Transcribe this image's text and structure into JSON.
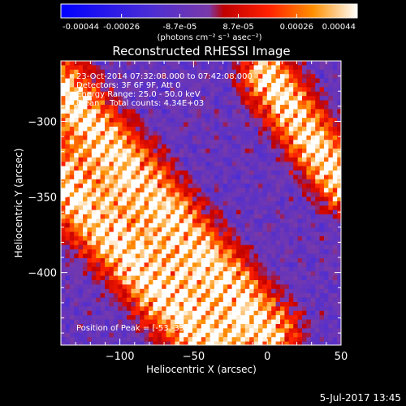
{
  "chart_data": {
    "type": "heatmap",
    "title": "Reconstructed RHESSI Image",
    "xlabel": "Heliocentric X (arcsec)",
    "ylabel": "Heliocentric Y (arcsec)",
    "xlim": [
      -140,
      50
    ],
    "ylim": [
      -448,
      -260
    ],
    "x_ticks": [
      -100,
      -50,
      0,
      50
    ],
    "y_ticks": [
      -300,
      -350,
      -400
    ],
    "colorbar": {
      "range": [
        -0.00044,
        0.00044
      ],
      "tick_values": [
        -0.00044,
        -0.00026,
        -8.7e-05,
        8.7e-05,
        0.00026,
        0.00044
      ],
      "tick_labels": [
        "-0.00044",
        "-0.00026",
        "-8.7e-05",
        "8.7e-05",
        "0.00026",
        "0.00044"
      ],
      "unit_label": "(photons cm⁻² s⁻¹ asec⁻²)",
      "colors": [
        "#0000ff",
        "#5a2bd0",
        "#7a3aa8",
        "#ff0000",
        "#ff8000",
        "#ffffff"
      ]
    },
    "annotations": [
      "23-Oct-2014 07:32:08.000 to 07:42:08.000",
      "Detectors: 3F 6F 9F, Att 0",
      "Energy Range: 25.0 - 50.0 keV",
      "Clean    Total counts: 4.34E+03"
    ],
    "peak_label": "Position of Peak = [-53,-339]",
    "bright_bands": [
      {
        "description": "lower-left diagonal ridge",
        "from": [
          -140,
          -340
        ],
        "to": [
          -40,
          -448
        ]
      },
      {
        "description": "central diagonal ridge",
        "from": [
          -140,
          -280
        ],
        "to": [
          0,
          -440
        ]
      },
      {
        "description": "right upper ridge",
        "from": [
          0,
          -270
        ],
        "to": [
          50,
          -340
        ]
      }
    ]
  },
  "footer": {
    "date": "5-Jul-2017 13:45"
  }
}
